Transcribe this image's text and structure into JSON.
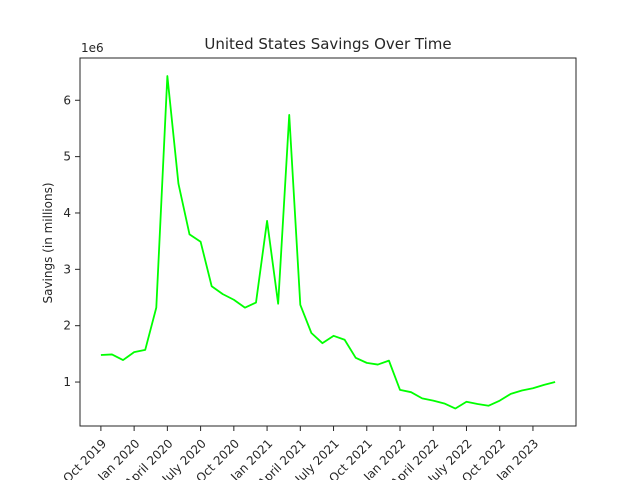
{
  "chart_data": {
    "type": "line",
    "title": "United States Savings Over Time",
    "xlabel": "",
    "ylabel": "Savings (in millions)",
    "y_offset_label": "1e6",
    "ylim": [
      0.22,
      6.75
    ],
    "grid": false,
    "legend": "none",
    "line_color": "#00ff00",
    "yticks": [
      1,
      2,
      3,
      4,
      5,
      6
    ],
    "ytick_labels": [
      "1",
      "2",
      "3",
      "4",
      "5",
      "6"
    ],
    "xticks": [
      "Oct 2019",
      "Jan 2020",
      "April 2020",
      "July 2020",
      "Oct 2020",
      "Jan 2021",
      "April 2021",
      "July 2021",
      "Oct 2021",
      "Jan 2022",
      "April 2022",
      "July 2022",
      "Oct 2022",
      "Jan 2023"
    ],
    "x": [
      "2019-10",
      "2019-11",
      "2019-12",
      "2020-01",
      "2020-02",
      "2020-03",
      "2020-04",
      "2020-05",
      "2020-06",
      "2020-07",
      "2020-08",
      "2020-09",
      "2020-10",
      "2020-11",
      "2020-12",
      "2021-01",
      "2021-02",
      "2021-03",
      "2021-04",
      "2021-05",
      "2021-06",
      "2021-07",
      "2021-08",
      "2021-09",
      "2021-10",
      "2021-11",
      "2021-12",
      "2022-01",
      "2022-02",
      "2022-03",
      "2022-04",
      "2022-05",
      "2022-06",
      "2022-07",
      "2022-08",
      "2022-09",
      "2022-10",
      "2022-11",
      "2022-12",
      "2023-01",
      "2023-02",
      "2023-03"
    ],
    "values": [
      1.48,
      1.49,
      1.39,
      1.53,
      1.57,
      2.32,
      6.43,
      4.52,
      3.62,
      3.49,
      2.7,
      2.56,
      2.46,
      2.32,
      2.41,
      3.86,
      2.39,
      5.74,
      2.37,
      1.87,
      1.69,
      1.82,
      1.75,
      1.43,
      1.34,
      1.31,
      1.38,
      0.86,
      0.82,
      0.71,
      0.67,
      0.62,
      0.53,
      0.65,
      0.61,
      0.58,
      0.67,
      0.79,
      0.85,
      0.89,
      0.95,
      1.0
    ]
  }
}
